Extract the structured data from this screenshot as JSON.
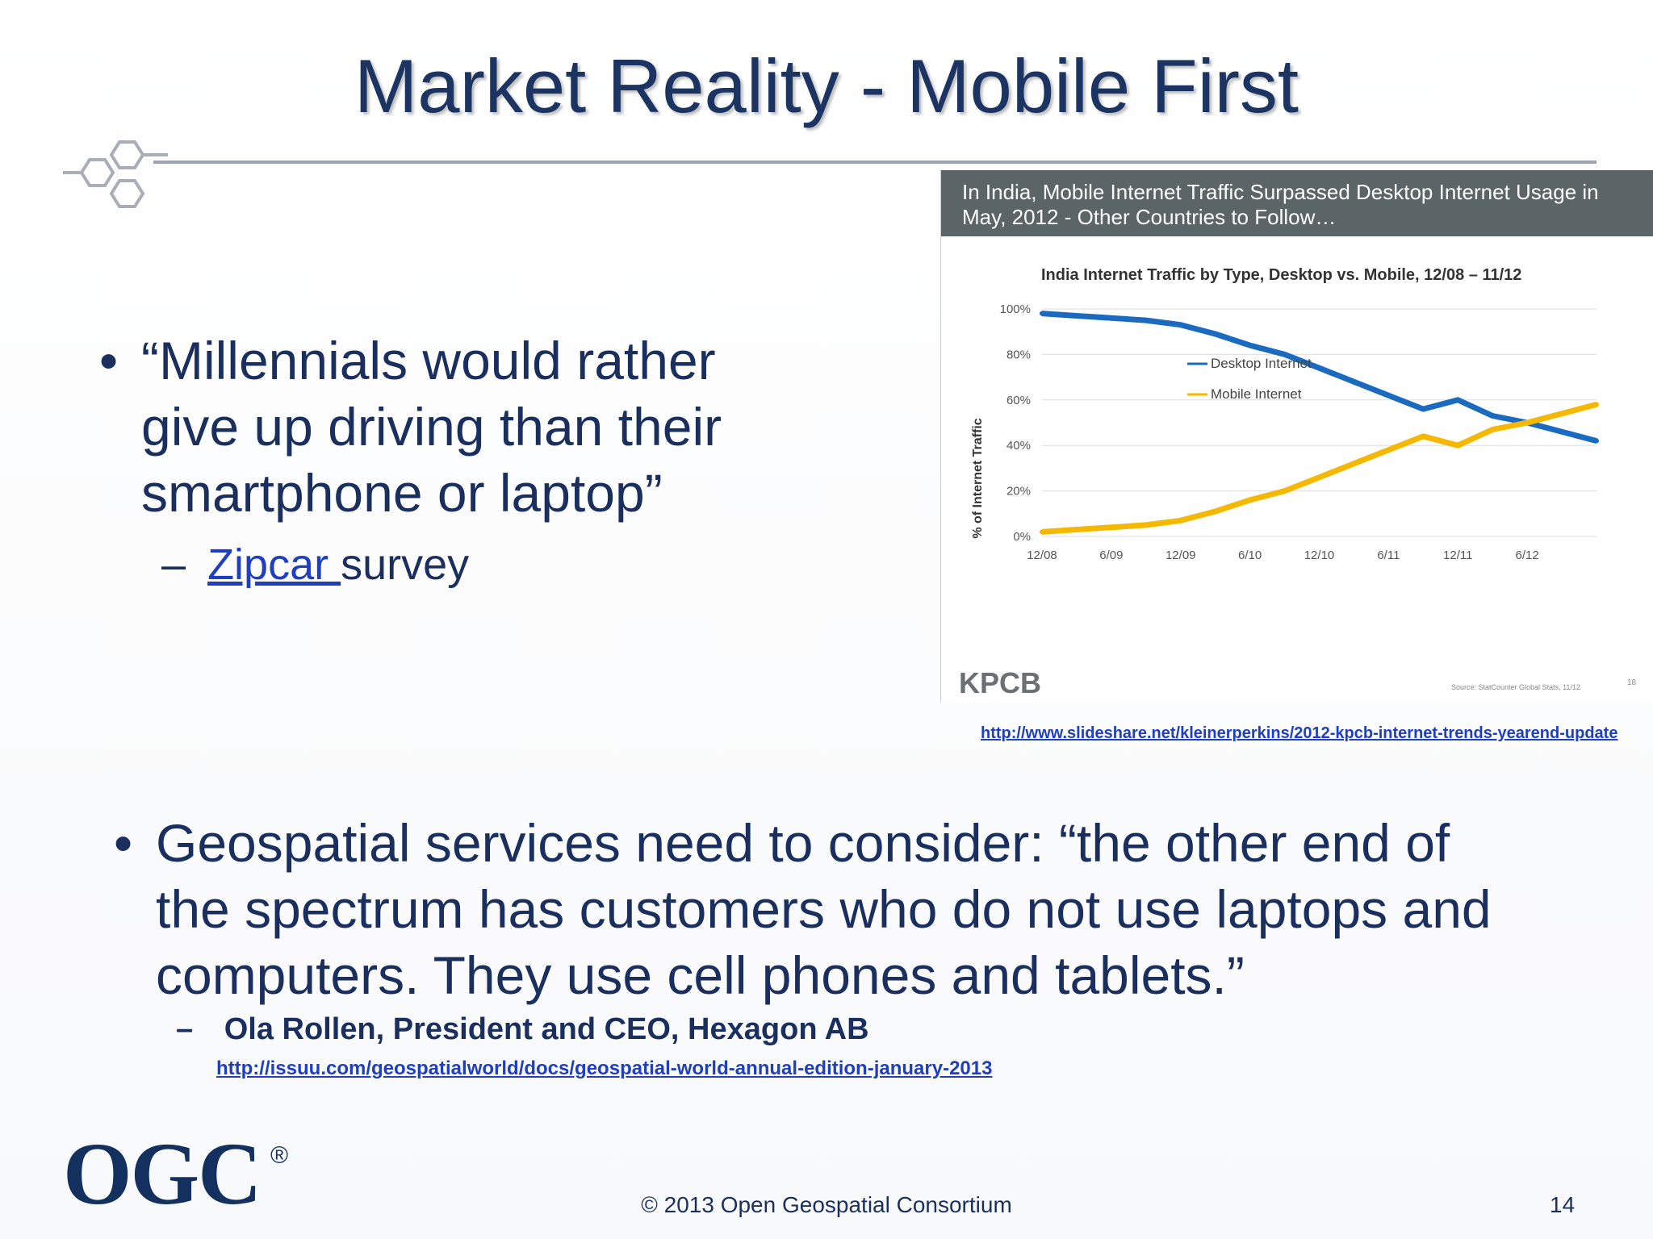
{
  "slide": {
    "title": "Market Reality - Mobile First",
    "bullet1": {
      "marker": "•",
      "lines": [
        "“Millennials would rather",
        "give up driving than their",
        "smartphone or laptop”"
      ],
      "sub_dash": "–",
      "sub_link": "Zipcar ",
      "sub_text": "survey"
    },
    "chart_source_url": "http://www.slideshare.net/kleinerperkins/2012-kpcb-internet-trends-yearend-update",
    "bullet2": {
      "marker": "•",
      "lines": [
        "Geospatial services need to consider: “the other end of",
        "the spectrum has customers who do not use laptops and",
        "computers. They use cell phones and tablets.”"
      ],
      "sub_dash": "–",
      "attribution": "Ola Rollen, President and CEO, Hexagon AB",
      "attribution_url": "http://issuu.com/geospatialworld/docs/geospatial-world-annual-edition-january-2013"
    },
    "logo_text": "OGC",
    "logo_reg": "®",
    "footer": "© 2013 Open Geospatial Consortium",
    "page_number": "14"
  },
  "chart_data": {
    "type": "line",
    "header_lines": [
      "In India, Mobile Internet Traffic Surpassed Desktop Internet Usage in",
      "May, 2012 - Other Countries to Follow…"
    ],
    "title": "India Internet Traffic by Type, Desktop vs. Mobile, 12/08 – 11/12",
    "ylabel": "% of Internet Traffic",
    "ylim": [
      0,
      100
    ],
    "yticks": [
      "0%",
      "20%",
      "40%",
      "60%",
      "80%",
      "100%"
    ],
    "x": [
      "12/08",
      "3/09",
      "6/09",
      "9/09",
      "12/09",
      "3/10",
      "6/10",
      "9/10",
      "12/10",
      "3/11",
      "6/11",
      "9/11",
      "12/11",
      "3/12",
      "6/12",
      "9/12",
      "11/12"
    ],
    "xticks": [
      "12/08",
      "6/09",
      "12/09",
      "6/10",
      "12/10",
      "6/11",
      "12/11",
      "6/12"
    ],
    "series": [
      {
        "name": "Desktop Internet",
        "color": "#1a6bbf",
        "values": [
          98,
          97,
          96,
          95,
          93,
          89,
          84,
          80,
          74,
          68,
          62,
          56,
          60,
          53,
          50,
          46,
          42
        ]
      },
      {
        "name": "Mobile Internet",
        "color": "#f5b800",
        "values": [
          2,
          3,
          4,
          5,
          7,
          11,
          16,
          20,
          26,
          32,
          38,
          44,
          40,
          47,
          50,
          54,
          58
        ]
      }
    ],
    "legend_position": "center",
    "brand": "KPCB",
    "source_note": "Source: StatCounter Global Stats, 11/12",
    "page_ref": "18"
  }
}
